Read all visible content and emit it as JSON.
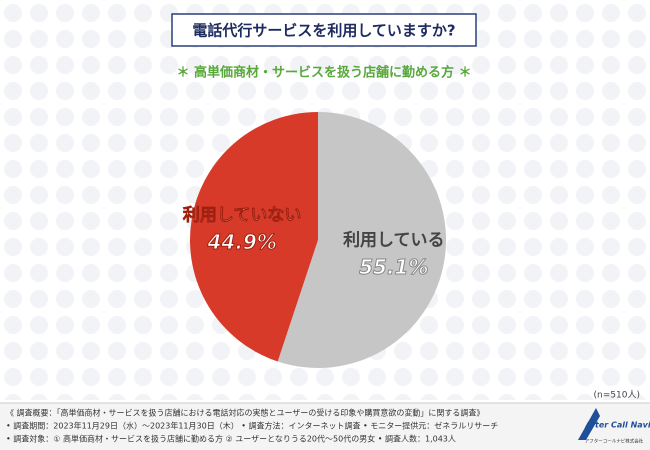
{
  "chart_data": {
    "type": "pie",
    "title": "電話代行サービスを利用していますか?",
    "subtitle": "＊ 高単価商材・サービスを扱う店舗に勤める方 ＊",
    "categories": [
      "利用している",
      "利用していない"
    ],
    "values": [
      55.1,
      44.9
    ],
    "value_labels": [
      "55.1%",
      "44.9%"
    ],
    "colors": [
      "#c6c6c6",
      "#d83a2a"
    ],
    "note": "(n=510人)",
    "footnotes": [
      "《 調査概要：「高単価商材・サービスを扱う店舗における電話対応の実態とユーザーの受ける印象や購買意欲の変動」に関する調査》",
      "• 調査期間：2023年11月29日（水）〜2023年11月30日（木） • 調査方法：インターネット調査 • モニター提供元：ゼネラルリサーチ",
      "• 調査対象：① 高単価商材・サービスを扱う店舗に勤める方 ② ユーザーとなりうる20代〜50代の男女 • 調査人数：1,043人"
    ],
    "logo": {
      "name": "After Call Navi",
      "company": "アフターコールナビ株式会社"
    }
  }
}
